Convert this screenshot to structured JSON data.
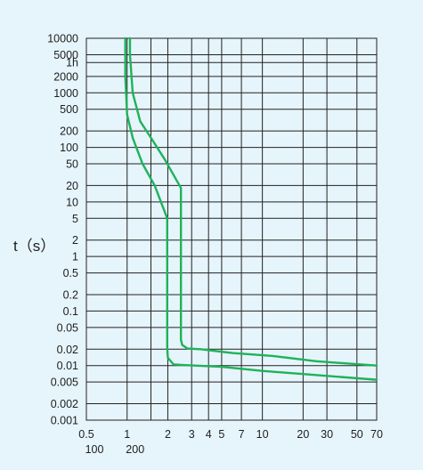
{
  "chart_data": {
    "type": "line",
    "title": "",
    "xlabel": "",
    "ylabel": "t（s）",
    "x_scale": "log",
    "y_scale": "log",
    "xlim": [
      0.5,
      70
    ],
    "ylim": [
      0.001,
      10000
    ],
    "grid": true,
    "legend": "none",
    "line_color": "#1db35a",
    "y_ticks": [
      {
        "value": 10000,
        "label": "10000"
      },
      {
        "value": 5000,
        "label": "5000"
      },
      {
        "value": 3600,
        "label": "1h"
      },
      {
        "value": 2000,
        "label": "2000"
      },
      {
        "value": 1000,
        "label": "1000"
      },
      {
        "value": 500,
        "label": "500"
      },
      {
        "value": 200,
        "label": "200"
      },
      {
        "value": 100,
        "label": "100"
      },
      {
        "value": 50,
        "label": "50"
      },
      {
        "value": 20,
        "label": "20"
      },
      {
        "value": 10,
        "label": "10"
      },
      {
        "value": 5,
        "label": "5"
      },
      {
        "value": 2,
        "label": "2"
      },
      {
        "value": 1,
        "label": "1"
      },
      {
        "value": 0.5,
        "label": "0.5"
      },
      {
        "value": 0.2,
        "label": "0.2"
      },
      {
        "value": 0.1,
        "label": "0.1"
      },
      {
        "value": 0.05,
        "label": "0.05"
      },
      {
        "value": 0.02,
        "label": "0.02"
      },
      {
        "value": 0.01,
        "label": "0.01"
      },
      {
        "value": 0.005,
        "label": "0.005"
      },
      {
        "value": 0.002,
        "label": "0.002"
      },
      {
        "value": 0.001,
        "label": "0.001"
      }
    ],
    "x_grid": [
      0.5,
      1,
      1.5,
      2,
      3,
      4,
      5,
      7,
      10,
      20,
      30,
      50,
      70
    ],
    "x_tick_labels_row1": [
      {
        "value": 0.5,
        "label": "0.5"
      },
      {
        "value": 1,
        "label": "1"
      },
      {
        "value": 2,
        "label": "2"
      },
      {
        "value": 3,
        "label": "3"
      },
      {
        "value": 4,
        "label": "4"
      },
      {
        "value": 5,
        "label": "5"
      },
      {
        "value": 7,
        "label": "7"
      },
      {
        "value": 10,
        "label": "10"
      },
      {
        "value": 20,
        "label": "20"
      },
      {
        "value": 30,
        "label": "30"
      },
      {
        "value": 50,
        "label": "50"
      },
      {
        "value": 70,
        "label": "70"
      }
    ],
    "x_tick_labels_row2": [
      {
        "value": 0.5,
        "label": "100"
      },
      {
        "value": 1,
        "label": "200"
      }
    ],
    "series": [
      {
        "x": [
          0.97,
          0.97,
          1.0,
          1.1,
          1.3,
          1.6,
          1.98,
          1.98,
          2.0,
          2.2,
          2.7,
          5,
          10,
          20,
          70
        ],
        "y": [
          10000,
          2000,
          400,
          150,
          50,
          20,
          5,
          0.022,
          0.014,
          0.0105,
          0.0102,
          0.0095,
          0.008,
          0.007,
          0.0055
        ]
      },
      {
        "x": [
          1.05,
          1.05,
          1.1,
          1.25,
          1.5,
          1.9,
          2.5,
          2.5,
          2.55,
          2.8,
          3.5,
          6,
          12,
          25,
          70
        ],
        "y": [
          10000,
          5000,
          1000,
          300,
          150,
          60,
          18,
          0.03,
          0.024,
          0.0205,
          0.02,
          0.017,
          0.015,
          0.012,
          0.01
        ]
      }
    ]
  }
}
